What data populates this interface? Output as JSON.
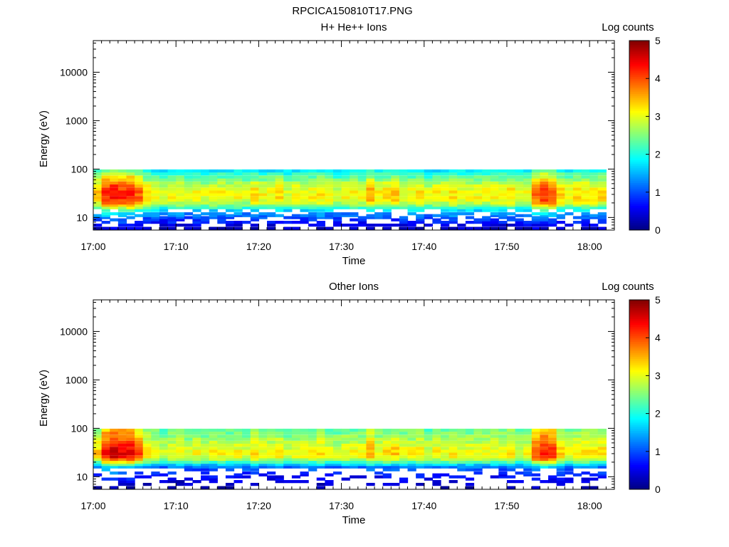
{
  "title": "RPCICA150810T17.PNG",
  "chart_data": [
    {
      "type": "heatmap",
      "title": "H+ He++ Ions",
      "xlabel": "Time",
      "ylabel": "Energy (eV)",
      "y_scale": "log",
      "ylim": [
        5.5,
        45000
      ],
      "y_ticks": [
        10,
        100,
        1000,
        10000
      ],
      "y_tick_labels": [
        "10",
        "100",
        "1000",
        "10000"
      ],
      "xlim": [
        "17:00",
        "18:03"
      ],
      "x_tick_labels": [
        "17:00",
        "17:10",
        "17:20",
        "17:30",
        "17:40",
        "17:50",
        "18:00"
      ],
      "data_end_time": "18:02",
      "energy_bins_eV": [
        6,
        7,
        8,
        9,
        10,
        11,
        12,
        14,
        16,
        18,
        20,
        23,
        26,
        30,
        34,
        39,
        45,
        52,
        60,
        69,
        80,
        92
      ],
      "colorbar": {
        "label": "Log counts",
        "ticks": [
          "0",
          "1",
          "2",
          "3",
          "4",
          "5"
        ],
        "range": [
          0,
          5
        ]
      },
      "level_profile": [
        0.3,
        0.5,
        0.7,
        0.8,
        1.0,
        1.2,
        1.3,
        1.7,
        2.1,
        2.5,
        2.8,
        3.0,
        3.1,
        3.1,
        3.1,
        3.0,
        2.9,
        2.7,
        2.5,
        2.3,
        2.1,
        1.8
      ],
      "column_intensity": [
        1.1,
        1.35,
        1.4,
        1.35,
        1.4,
        1.25,
        1.05,
        1.0,
        0.95,
        1.0,
        1.0,
        0.95,
        1.0,
        0.95,
        1.0,
        1.0,
        0.95,
        1.0,
        0.95,
        1.05,
        1.0,
        1.0,
        1.05,
        0.95,
        1.0,
        1.0,
        1.0,
        1.05,
        1.0,
        0.95,
        1.0,
        1.0,
        1.0,
        1.15,
        1.0,
        1.05,
        1.1,
        1.0,
        1.0,
        1.05,
        0.95,
        1.0,
        1.0,
        1.05,
        1.0,
        1.0,
        1.0,
        1.0,
        1.0,
        1.0,
        1.05,
        0.95,
        1.0,
        1.25,
        1.35,
        1.3,
        1.1,
        1.0,
        1.05,
        1.05,
        1.05,
        1.05
      ],
      "low_energy_coverage": 0.65
    },
    {
      "type": "heatmap",
      "title": "Other Ions",
      "xlabel": "Time",
      "ylabel": "Energy (eV)",
      "y_scale": "log",
      "ylim": [
        5.5,
        45000
      ],
      "y_ticks": [
        10,
        100,
        1000,
        10000
      ],
      "y_tick_labels": [
        "10",
        "100",
        "1000",
        "10000"
      ],
      "xlim": [
        "17:00",
        "18:03"
      ],
      "x_tick_labels": [
        "17:00",
        "17:10",
        "17:20",
        "17:30",
        "17:40",
        "17:50",
        "18:00"
      ],
      "data_end_time": "18:02",
      "energy_bins_eV": [
        6,
        7,
        8,
        9,
        10,
        11,
        12,
        14,
        16,
        18,
        20,
        23,
        26,
        30,
        34,
        39,
        45,
        52,
        60,
        69,
        80,
        92
      ],
      "colorbar": {
        "label": "Log counts",
        "ticks": [
          "0",
          "1",
          "2",
          "3",
          "4",
          "5"
        ],
        "range": [
          0,
          5
        ]
      },
      "level_profile": [
        0.2,
        0.3,
        0.4,
        0.5,
        0.6,
        0.7,
        0.8,
        1.0,
        1.2,
        1.6,
        2.2,
        2.7,
        3.0,
        3.1,
        3.1,
        3.0,
        2.9,
        2.8,
        2.7,
        2.6,
        2.5,
        2.4
      ],
      "column_intensity": [
        1.1,
        1.4,
        1.5,
        1.45,
        1.45,
        1.3,
        1.05,
        1.0,
        0.95,
        1.0,
        1.0,
        0.95,
        1.0,
        0.95,
        1.0,
        1.0,
        0.95,
        1.0,
        0.95,
        1.05,
        1.0,
        1.0,
        1.05,
        0.95,
        1.0,
        1.0,
        1.0,
        1.05,
        1.0,
        0.95,
        1.0,
        1.0,
        1.0,
        1.15,
        1.0,
        1.05,
        1.1,
        1.0,
        1.0,
        1.05,
        0.95,
        1.0,
        1.0,
        1.05,
        1.0,
        1.0,
        1.0,
        1.0,
        1.0,
        1.0,
        1.05,
        0.95,
        1.0,
        1.3,
        1.4,
        1.35,
        1.1,
        1.0,
        1.05,
        1.05,
        1.05,
        1.05
      ],
      "low_energy_coverage": 0.35
    }
  ]
}
